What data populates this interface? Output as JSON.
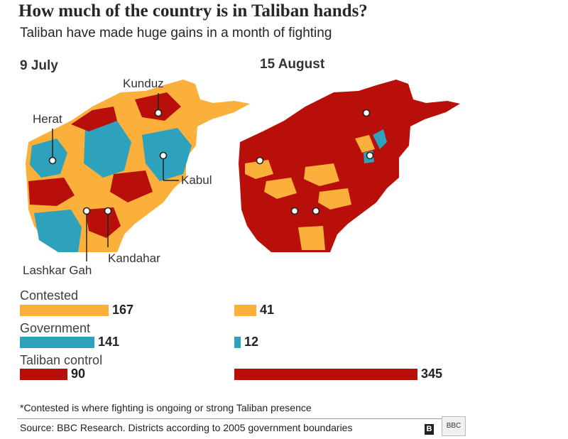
{
  "title": "How much of the country is in Taliban hands?",
  "subtitle": "Taliban have made huge gains in a month of fighting",
  "maps": [
    {
      "date": "9 July"
    },
    {
      "date": "15 August"
    }
  ],
  "cities": {
    "kunduz": "Kunduz",
    "herat": "Herat",
    "kabul": "Kabul",
    "lashkar_gah": "Lashkar Gah",
    "kandahar": "Kandahar"
  },
  "colors": {
    "contested": "#fbb03b",
    "government": "#2ea1bd",
    "taliban": "#b80f0a"
  },
  "chart_data": {
    "type": "bar",
    "orientation": "horizontal",
    "categories": [
      "Contested",
      "Government",
      "Taliban control"
    ],
    "series": [
      {
        "name": "9 July",
        "values": [
          167,
          141,
          90
        ]
      },
      {
        "name": "15 August",
        "values": [
          41,
          12,
          345
        ]
      }
    ]
  },
  "footnote": "*Contested is where fighting is ongoing or strong Taliban presence",
  "source": "Source: BBC Research. Districts according to 2005 government boundaries",
  "logo": "BBC"
}
